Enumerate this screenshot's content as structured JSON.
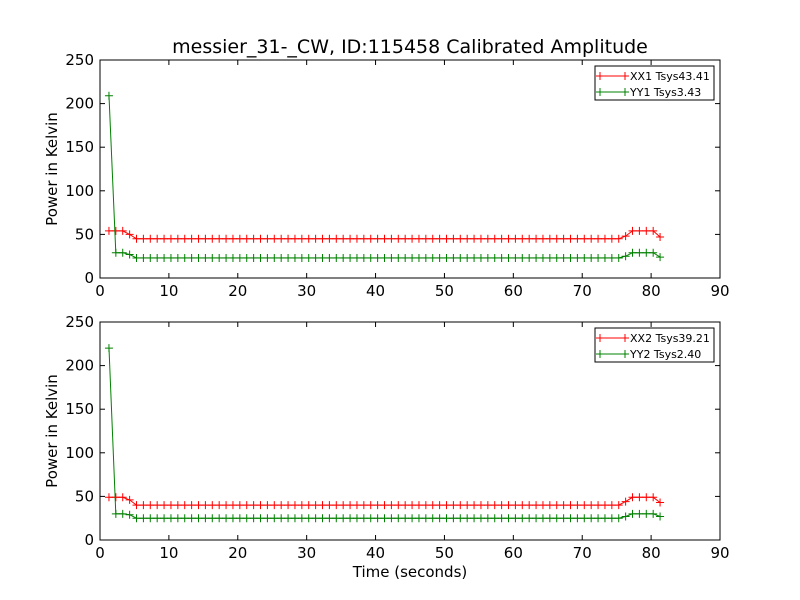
{
  "title": "messier_31-_CW, ID:115458 Calibrated Amplitude",
  "colors": {
    "xx": "#ff0000",
    "yy": "#008000",
    "axes": "#000000"
  },
  "chart_data": [
    {
      "type": "line",
      "title": "messier_31-_CW, ID:115458 Calibrated Amplitude",
      "ylabel": "Power in Kelvin",
      "xlabel": "",
      "xlim": [
        0,
        90
      ],
      "ylim": [
        0,
        250
      ],
      "xticks": [
        "0",
        "10",
        "20",
        "30",
        "40",
        "50",
        "60",
        "70",
        "80",
        "90"
      ],
      "yticks": [
        "0",
        "50",
        "100",
        "150",
        "200",
        "250"
      ],
      "grid": false,
      "legend_position": "top-right",
      "marker": "+",
      "series": [
        {
          "name": "XX1 Tsys43.41",
          "color": "#ff0000",
          "start": {
            "x": [
              1.3,
              2.3,
              3.3,
              4.3,
              5.3
            ],
            "y": [
              54,
              54,
              54,
              50,
              45
            ]
          },
          "plateau": {
            "from": 5.3,
            "to": 74.3,
            "step": 1,
            "y": 45
          },
          "end": {
            "x": [
              75.3,
              76.3,
              77.3,
              78.3,
              79.3,
              80.3,
              81.3
            ],
            "y": [
              45,
              48,
              54,
              54,
              54,
              54,
              47
            ]
          }
        },
        {
          "name": "YY1 Tsys3.43",
          "color": "#008000",
          "start": {
            "x": [
              1.3,
              2.3,
              3.3,
              4.3,
              5.3
            ],
            "y": [
              209,
              29,
              29,
              27,
              23
            ]
          },
          "plateau": {
            "from": 5.3,
            "to": 74.3,
            "step": 1,
            "y": 23
          },
          "end": {
            "x": [
              75.3,
              76.3,
              77.3,
              78.3,
              79.3,
              80.3,
              81.3
            ],
            "y": [
              23,
              25,
              29,
              29,
              29,
              29,
              24
            ]
          }
        }
      ]
    },
    {
      "type": "line",
      "title": "",
      "ylabel": "Power in Kelvin",
      "xlabel": "Time (seconds)",
      "xlim": [
        0,
        90
      ],
      "ylim": [
        0,
        250
      ],
      "xticks": [
        "0",
        "10",
        "20",
        "30",
        "40",
        "50",
        "60",
        "70",
        "80",
        "90"
      ],
      "yticks": [
        "0",
        "50",
        "100",
        "150",
        "200",
        "250"
      ],
      "grid": false,
      "legend_position": "top-right",
      "marker": "+",
      "series": [
        {
          "name": "XX2 Tsys39.21",
          "color": "#ff0000",
          "start": {
            "x": [
              1.3,
              2.3,
              3.3,
              4.3,
              5.3
            ],
            "y": [
              49,
              49,
              49,
              46,
              40
            ]
          },
          "plateau": {
            "from": 5.3,
            "to": 74.3,
            "step": 1,
            "y": 40
          },
          "end": {
            "x": [
              75.3,
              76.3,
              77.3,
              78.3,
              79.3,
              80.3,
              81.3
            ],
            "y": [
              40,
              44,
              49,
              49,
              49,
              49,
              43
            ]
          }
        },
        {
          "name": "YY2 Tsys2.40",
          "color": "#008000",
          "start": {
            "x": [
              1.3,
              2.3,
              3.3,
              4.3,
              5.3
            ],
            "y": [
              220,
              30,
              30,
              29,
              25
            ]
          },
          "plateau": {
            "from": 5.3,
            "to": 74.3,
            "step": 1,
            "y": 25
          },
          "end": {
            "x": [
              75.3,
              76.3,
              77.3,
              78.3,
              79.3,
              80.3,
              81.3
            ],
            "y": [
              25,
              27,
              30,
              30,
              30,
              30,
              27
            ]
          }
        }
      ]
    }
  ]
}
